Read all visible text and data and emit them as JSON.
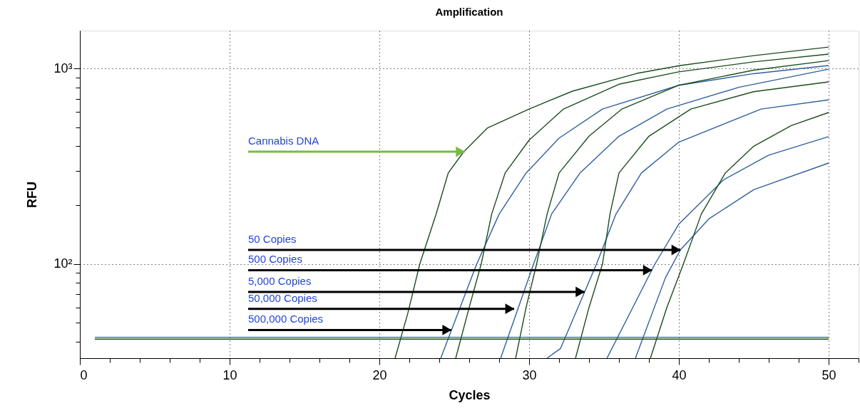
{
  "chart_data": {
    "type": "line",
    "title": "Amplification",
    "xlabel": "Cycles",
    "ylabel": "RFU",
    "log": "y",
    "grid": true,
    "legend": false,
    "marker": "none",
    "line_style": "solid",
    "xlim": [
      0,
      52
    ],
    "ylim": [
      33,
      1560
    ],
    "xticks": [
      0,
      {
        "value": 2,
        "label": null
      },
      {
        "value": 4,
        "label": null
      },
      {
        "value": 6,
        "label": null
      },
      {
        "value": 8,
        "label": null
      },
      10,
      {
        "value": 12,
        "label": null
      },
      {
        "value": 14,
        "label": null
      },
      {
        "value": 16,
        "label": null
      },
      {
        "value": 18,
        "label": null
      },
      20,
      {
        "value": 22,
        "label": null
      },
      {
        "value": 24,
        "label": null
      },
      {
        "value": 26,
        "label": null
      },
      {
        "value": 28,
        "label": null
      },
      30,
      {
        "value": 32,
        "label": null
      },
      {
        "value": 34,
        "label": null
      },
      {
        "value": 36,
        "label": null
      },
      {
        "value": 38,
        "label": null
      },
      40,
      {
        "value": 42,
        "label": null
      },
      {
        "value": 44,
        "label": null
      },
      {
        "value": 46,
        "label": null
      },
      {
        "value": 48,
        "label": null
      },
      50,
      {
        "value": 52,
        "label": null
      }
    ],
    "yticks": [
      {
        "value": 40,
        "label": null
      },
      {
        "value": 50,
        "label": null
      },
      {
        "value": 60,
        "label": null
      },
      {
        "value": 70,
        "label": null
      },
      {
        "value": 80,
        "label": null
      },
      {
        "value": 90,
        "label": null
      },
      {
        "value": 100,
        "label": "10²"
      },
      {
        "value": 200,
        "label": null
      },
      {
        "value": 300,
        "label": null
      },
      {
        "value": 400,
        "label": null
      },
      {
        "value": 500,
        "label": null
      },
      {
        "value": 600,
        "label": null
      },
      {
        "value": 700,
        "label": null
      },
      {
        "value": 800,
        "label": null
      },
      {
        "value": 900,
        "label": null
      },
      {
        "value": 1000,
        "label": "10³"
      }
    ],
    "series": [
      {
        "color": "#1b4d1b",
        "x": [
          21.05,
          21.9,
          22.7,
          23.8,
          24.6,
          25.6,
          27.2,
          30.0,
          32.9,
          37.2,
          40.1,
          45,
          50
        ],
        "values": [
          33,
          56,
          100,
          181,
          292,
          372,
          495,
          620,
          765,
          943,
          1035,
          1162,
          1285
        ]
      },
      {
        "color": "#2f5f9e",
        "x": [
          24.1,
          26.5,
          28,
          29.8,
          32,
          34.9,
          40,
          45,
          50
        ],
        "values": [
          33,
          100,
          180,
          292,
          440,
          620,
          820,
          940,
          1035
        ]
      },
      {
        "color": "#1b4d1b",
        "x": [
          25.1,
          26,
          26.8,
          27.5,
          28.4,
          30,
          32.3,
          36,
          40,
          45,
          50
        ],
        "values": [
          33,
          60,
          100,
          180,
          292,
          430,
          620,
          830,
          960,
          1080,
          1183
        ]
      },
      {
        "color": "#2f5f9e",
        "x": [
          28.1,
          30.3,
          31.5,
          33.4,
          36,
          39.2,
          44,
          50
        ],
        "values": [
          33,
          100,
          180,
          292,
          450,
          620,
          800,
          991
        ]
      },
      {
        "color": "#1b4d1b",
        "x": [
          29.1,
          29.8,
          30.5,
          31.2,
          32.0,
          34,
          36.2,
          40,
          45,
          50
        ],
        "values": [
          33,
          60,
          100,
          180,
          292,
          450,
          620,
          820,
          980,
          1096
        ]
      },
      {
        "color": "#2f5f9e",
        "x": [
          31.2,
          32.1,
          34.5,
          35.8,
          37.5,
          40,
          45.5,
          50
        ],
        "values": [
          33,
          37,
          100,
          180,
          292,
          420,
          620,
          690
        ]
      },
      {
        "color": "#1b4d1b",
        "x": [
          33.1,
          34,
          34.9,
          35.4,
          36.0,
          38,
          40.8,
          45,
          50
        ],
        "values": [
          33,
          60,
          100,
          180,
          292,
          450,
          620,
          760,
          853
        ]
      },
      {
        "color": "#2f5f9e",
        "x": [
          35.2,
          38.4,
          40,
          43,
          46,
          50
        ],
        "values": [
          33,
          100,
          160,
          270,
          360,
          448
        ]
      },
      {
        "color": "#2f5f9e",
        "x": [
          37.1,
          39.1,
          40.1,
          42,
          45,
          50
        ],
        "values": [
          33,
          85,
          118,
          170,
          240,
          328
        ]
      },
      {
        "color": "#1b4d1b",
        "x": [
          38.1,
          39.2,
          40.3,
          41.5,
          43.1,
          45,
          47.5,
          50
        ],
        "values": [
          33,
          60,
          100,
          180,
          292,
          400,
          510,
          595
        ]
      },
      {
        "color": "#2f5f9e",
        "x": [
          1,
          50
        ],
        "values": [
          42.2,
          42.2
        ]
      },
      {
        "color": "#1b4d1b",
        "x": [
          1,
          50
        ],
        "values": [
          41.3,
          41.3
        ]
      }
    ],
    "annotations": [
      {
        "text": "Cannabis DNA",
        "x": 25.7,
        "y": 375
      },
      {
        "text": "50 Copies",
        "x": 40.1,
        "y": 118
      },
      {
        "text": "500 Copies",
        "x": 38.2,
        "y": 93
      },
      {
        "text": "5,000 Copies",
        "x": 33.7,
        "y": 72
      },
      {
        "text": "50,000 Copies",
        "x": 29.0,
        "y": 59
      },
      {
        "text": "500,000 Copies",
        "x": 24.8,
        "y": 46
      }
    ]
  }
}
